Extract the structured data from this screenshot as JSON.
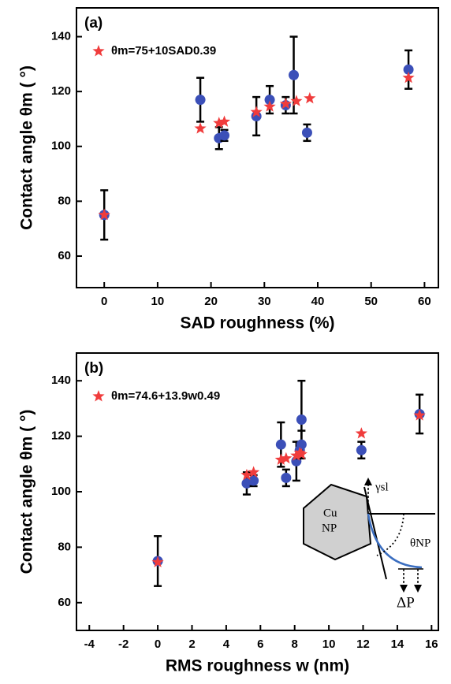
{
  "chart_data": [
    {
      "type": "scatter",
      "panel_label": "(a)",
      "x_label": "SAD roughness (%)",
      "y_label": "Contact angle θm ( °)",
      "xlim": [
        -5.2,
        62.6
      ],
      "ylim": [
        48.5,
        150.5
      ],
      "xticks": [
        0,
        10,
        20,
        30,
        40,
        50,
        60
      ],
      "yticks": [
        60,
        80,
        100,
        120,
        140
      ],
      "legend": "upper left",
      "series": [
        {
          "marker": "circle",
          "color": "#3b4fb8",
          "x": [
            0,
            18,
            21.5,
            22.5,
            28.5,
            31,
            34,
            35.5,
            38,
            57
          ],
          "values": [
            75,
            117,
            103,
            104,
            111,
            117,
            115,
            126,
            105,
            128
          ],
          "errors": [
            9,
            8,
            4,
            2,
            7,
            5,
            3,
            14,
            3,
            7
          ]
        },
        {
          "name": "θm=75+10SAD0.39",
          "marker": "star",
          "color": "#f03c3c",
          "x": [
            0,
            18,
            21.5,
            22.5,
            28.5,
            31,
            34,
            36,
            38.5,
            57
          ],
          "values": [
            75,
            106.5,
            108.5,
            109,
            112.5,
            114.5,
            115.5,
            116.5,
            117.5,
            125
          ]
        }
      ]
    },
    {
      "type": "scatter",
      "panel_label": "(b)",
      "x_label": "RMS roughness w (nm)",
      "y_label": "Contact angle θm ( °)",
      "xlim": [
        -4.75,
        16.4
      ],
      "ylim": [
        50,
        150
      ],
      "xticks": [
        -4,
        -2,
        0,
        2,
        4,
        6,
        8,
        10,
        12,
        14,
        16
      ],
      "yticks": [
        60,
        80,
        100,
        120,
        140
      ],
      "legend": "upper left",
      "series": [
        {
          "marker": "circle",
          "color": "#3b4fb8",
          "x": [
            0,
            5.2,
            5.6,
            7.2,
            7.5,
            8.1,
            8.3,
            8.4,
            8.4,
            11.9,
            15.3
          ],
          "values": [
            75,
            103,
            104,
            117,
            105,
            111,
            115,
            126,
            117,
            115,
            128
          ],
          "errors": [
            9,
            4,
            2,
            8,
            3,
            7,
            3,
            14,
            5,
            3,
            7
          ]
        },
        {
          "name": "θm=74.6+13.9w0.49",
          "marker": "star",
          "color": "#f03c3c",
          "x": [
            0,
            5.2,
            5.6,
            7.2,
            7.5,
            8.1,
            8.3,
            8.4,
            11.9,
            15.3
          ],
          "values": [
            74.6,
            106,
            107,
            111.5,
            112,
            113,
            114,
            113.5,
            121,
            127.5
          ]
        }
      ],
      "inset": {
        "particle_top": "Cu",
        "particle_bottom": "NP",
        "tension": "γsl",
        "angle": "θNP",
        "pressure": "ΔP"
      }
    }
  ]
}
